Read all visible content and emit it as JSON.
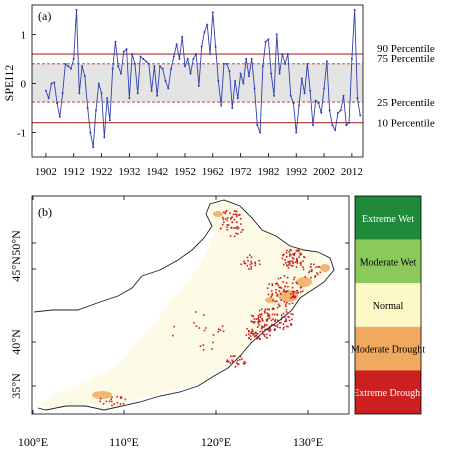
{
  "panel_a": {
    "label": "(a)",
    "ylabel": "SPEI12",
    "chart_data": {
      "type": "line",
      "x_start": 1902,
      "x_step": 1,
      "xlim": [
        1897,
        2016
      ],
      "ylim": [
        -1.5,
        1.6
      ],
      "yticks": [
        -1,
        0,
        1
      ],
      "xticks": [
        1902,
        1912,
        1922,
        1932,
        1942,
        1952,
        1962,
        1972,
        1982,
        1992,
        2002,
        2012
      ],
      "series": [
        {
          "values": [
            -0.15,
            -0.3,
            0.0,
            0.02,
            -0.4,
            -0.68,
            -0.2,
            0.4,
            0.35,
            0.3,
            0.5,
            1.5,
            -0.2,
            0.35,
            0.15,
            -0.5,
            -1.0,
            -1.3,
            -0.55,
            0.0,
            -0.2,
            -1.1,
            -0.3,
            -0.75,
            0.3,
            0.85,
            0.35,
            0.2,
            0.65,
            0.7,
            -0.3,
            0.6,
            0.4,
            -0.2,
            0.55,
            0.5,
            0.45,
            0.4,
            -0.15,
            0.35,
            -0.25,
            0.35,
            0.3,
            0.05,
            -0.1,
            0.3,
            0.55,
            0.8,
            0.5,
            0.95,
            0.35,
            0.5,
            0.2,
            0.5,
            0.6,
            -0.05,
            0.75,
            1.05,
            1.2,
            0.6,
            1.45,
            0.75,
            0.05,
            -0.45,
            0.4,
            0.4,
            0.25,
            -0.5,
            0.05,
            -0.3,
            0.2,
            0.0,
            0.5,
            0.15,
            0.5,
            -0.1,
            -0.85,
            -1.0,
            0.35,
            0.85,
            0.9,
            0.2,
            -0.25,
            1.0,
            0.2,
            0.6,
            0.4,
            0.6,
            -0.25,
            -0.4,
            -1.0,
            -0.45,
            0.1,
            -0.2,
            0.4,
            -0.15,
            -0.85,
            -0.35,
            -0.4,
            -0.6,
            -0.1,
            0.45,
            -0.55,
            -0.85,
            -0.95,
            -0.6,
            -0.55,
            -0.25,
            -0.85,
            -0.8,
            0.5,
            1.5,
            -0.3,
            -0.65
          ]
        }
      ],
      "percentiles": [
        {
          "label": "90 Percentile",
          "value": 0.6,
          "style": "solid"
        },
        {
          "label": "75 Percentile",
          "value": 0.4,
          "style": "dashed"
        },
        {
          "label": "25 Percentile",
          "value": -0.38,
          "style": "dashed"
        },
        {
          "label": "10 Percentile",
          "value": -0.8,
          "style": "solid"
        }
      ],
      "colors": {
        "line": "#3140b0",
        "band": "#e4e4e4",
        "percentile": "#b03030"
      }
    }
  },
  "panel_b": {
    "label": "(b)",
    "lon_ticks": [
      "100°E",
      "110°E",
      "120°E",
      "130°E"
    ],
    "lat_ticks": [
      "50°N",
      "45°N",
      "40°N",
      "35°N"
    ],
    "legend": [
      {
        "label": "Extreme Wet",
        "color": "#1e8a3a"
      },
      {
        "label": "Moderate Wet",
        "color": "#8bc95a"
      },
      {
        "label": "Normal",
        "color": "#fbf8c6"
      },
      {
        "label": "Moderate Drought",
        "color": "#f1a95f"
      },
      {
        "label": "Extreme Drought",
        "color": "#cc2020"
      }
    ]
  }
}
